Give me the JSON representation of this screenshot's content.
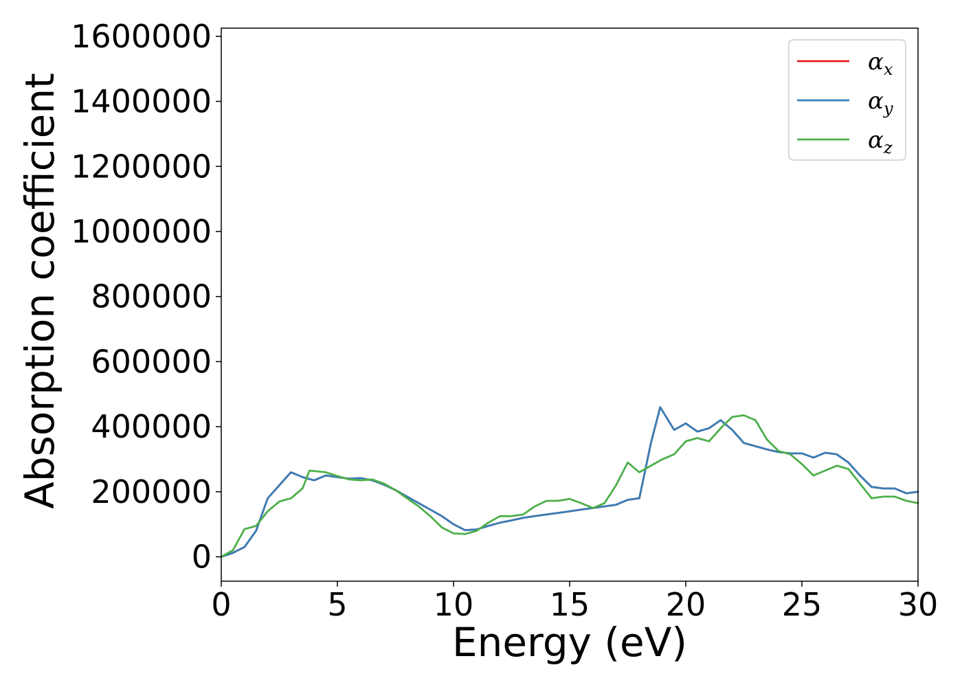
{
  "chart_data": {
    "type": "line",
    "title": "",
    "xlabel": "Energy (eV)",
    "ylabel": "Absorption coefficient",
    "xlim": [
      0,
      30
    ],
    "ylim": [
      -75000,
      1625000
    ],
    "x_ticks": [
      {
        "value": 0,
        "label": "0"
      },
      {
        "value": 5,
        "label": "5"
      },
      {
        "value": 10,
        "label": "10"
      },
      {
        "value": 15,
        "label": "15"
      },
      {
        "value": 20,
        "label": "20"
      },
      {
        "value": 25,
        "label": "25"
      },
      {
        "value": 30,
        "label": "30"
      }
    ],
    "y_ticks": [
      {
        "value": 0,
        "label": "0"
      },
      {
        "value": 200000,
        "label": "200000"
      },
      {
        "value": 400000,
        "label": "400000"
      },
      {
        "value": 600000,
        "label": "600000"
      },
      {
        "value": 800000,
        "label": "800000"
      },
      {
        "value": 1000000,
        "label": "1000000"
      },
      {
        "value": 1200000,
        "label": "1200000"
      },
      {
        "value": 1400000,
        "label": "1400000"
      },
      {
        "value": 1600000,
        "label": "1600000"
      }
    ],
    "grid": false,
    "legend_position": "top-right",
    "series": [
      {
        "name": "α",
        "subscript": "x",
        "color": "#e41a1c",
        "points": [
          [
            0,
            0
          ],
          [
            0.5,
            12000
          ],
          [
            1,
            30000
          ],
          [
            1.5,
            80000
          ],
          [
            2,
            180000
          ],
          [
            2.5,
            220000
          ],
          [
            3,
            260000
          ],
          [
            3.5,
            245000
          ],
          [
            4,
            235000
          ],
          [
            4.5,
            250000
          ],
          [
            5,
            245000
          ],
          [
            5.5,
            240000
          ],
          [
            6,
            242000
          ],
          [
            6.5,
            235000
          ],
          [
            7,
            222000
          ],
          [
            7.5,
            205000
          ],
          [
            8,
            185000
          ],
          [
            8.5,
            165000
          ],
          [
            9,
            145000
          ],
          [
            9.5,
            125000
          ],
          [
            10,
            100000
          ],
          [
            10.5,
            82000
          ],
          [
            11,
            84000
          ],
          [
            11.5,
            95000
          ],
          [
            12,
            105000
          ],
          [
            12.5,
            112000
          ],
          [
            13,
            120000
          ],
          [
            13.5,
            125000
          ],
          [
            14,
            130000
          ],
          [
            14.5,
            135000
          ],
          [
            15,
            140000
          ],
          [
            15.5,
            145000
          ],
          [
            16,
            150000
          ],
          [
            16.5,
            155000
          ],
          [
            17,
            160000
          ],
          [
            17.5,
            175000
          ],
          [
            18,
            180000
          ],
          [
            18.5,
            350000
          ],
          [
            18.9,
            460000
          ],
          [
            19.5,
            390000
          ],
          [
            20,
            410000
          ],
          [
            20.5,
            385000
          ],
          [
            21,
            395000
          ],
          [
            21.5,
            420000
          ],
          [
            22,
            390000
          ],
          [
            22.5,
            350000
          ],
          [
            23,
            340000
          ],
          [
            23.5,
            330000
          ],
          [
            24,
            322000
          ],
          [
            24.5,
            318000
          ],
          [
            25,
            318000
          ],
          [
            25.5,
            305000
          ],
          [
            26,
            320000
          ],
          [
            26.5,
            315000
          ],
          [
            27,
            290000
          ],
          [
            27.5,
            250000
          ],
          [
            28,
            215000
          ],
          [
            28.5,
            210000
          ],
          [
            29,
            210000
          ],
          [
            29.5,
            195000
          ],
          [
            30,
            200000
          ]
        ]
      },
      {
        "name": "α",
        "subscript": "y",
        "color": "#377eb8",
        "points": [
          [
            0,
            0
          ],
          [
            0.5,
            12000
          ],
          [
            1,
            30000
          ],
          [
            1.5,
            80000
          ],
          [
            2,
            180000
          ],
          [
            2.5,
            220000
          ],
          [
            3,
            260000
          ],
          [
            3.5,
            245000
          ],
          [
            4,
            235000
          ],
          [
            4.5,
            250000
          ],
          [
            5,
            245000
          ],
          [
            5.5,
            240000
          ],
          [
            6,
            242000
          ],
          [
            6.5,
            235000
          ],
          [
            7,
            222000
          ],
          [
            7.5,
            205000
          ],
          [
            8,
            185000
          ],
          [
            8.5,
            165000
          ],
          [
            9,
            145000
          ],
          [
            9.5,
            125000
          ],
          [
            10,
            100000
          ],
          [
            10.5,
            82000
          ],
          [
            11,
            84000
          ],
          [
            11.5,
            95000
          ],
          [
            12,
            105000
          ],
          [
            12.5,
            112000
          ],
          [
            13,
            120000
          ],
          [
            13.5,
            125000
          ],
          [
            14,
            130000
          ],
          [
            14.5,
            135000
          ],
          [
            15,
            140000
          ],
          [
            15.5,
            145000
          ],
          [
            16,
            150000
          ],
          [
            16.5,
            155000
          ],
          [
            17,
            160000
          ],
          [
            17.5,
            175000
          ],
          [
            18,
            180000
          ],
          [
            18.5,
            350000
          ],
          [
            18.9,
            460000
          ],
          [
            19.5,
            390000
          ],
          [
            20,
            410000
          ],
          [
            20.5,
            385000
          ],
          [
            21,
            395000
          ],
          [
            21.5,
            420000
          ],
          [
            22,
            390000
          ],
          [
            22.5,
            350000
          ],
          [
            23,
            340000
          ],
          [
            23.5,
            330000
          ],
          [
            24,
            322000
          ],
          [
            24.5,
            318000
          ],
          [
            25,
            318000
          ],
          [
            25.5,
            305000
          ],
          [
            26,
            320000
          ],
          [
            26.5,
            315000
          ],
          [
            27,
            290000
          ],
          [
            27.5,
            250000
          ],
          [
            28,
            215000
          ],
          [
            28.5,
            210000
          ],
          [
            29,
            210000
          ],
          [
            29.5,
            195000
          ],
          [
            30,
            200000
          ]
        ]
      },
      {
        "name": "α",
        "subscript": "z",
        "color": "#4daf4a",
        "points": [
          [
            0,
            0
          ],
          [
            0.5,
            20000
          ],
          [
            1,
            85000
          ],
          [
            1.5,
            95000
          ],
          [
            2,
            140000
          ],
          [
            2.5,
            170000
          ],
          [
            3,
            180000
          ],
          [
            3.5,
            210000
          ],
          [
            3.8,
            265000
          ],
          [
            4.5,
            260000
          ],
          [
            5,
            248000
          ],
          [
            5.5,
            238000
          ],
          [
            6,
            235000
          ],
          [
            6.5,
            238000
          ],
          [
            7,
            225000
          ],
          [
            7.5,
            205000
          ],
          [
            8,
            180000
          ],
          [
            8.5,
            155000
          ],
          [
            9,
            125000
          ],
          [
            9.5,
            90000
          ],
          [
            10,
            72000
          ],
          [
            10.5,
            70000
          ],
          [
            11,
            80000
          ],
          [
            11.5,
            105000
          ],
          [
            12,
            125000
          ],
          [
            12.5,
            125000
          ],
          [
            13,
            130000
          ],
          [
            13.5,
            155000
          ],
          [
            14,
            172000
          ],
          [
            14.5,
            172000
          ],
          [
            15,
            178000
          ],
          [
            15.5,
            165000
          ],
          [
            16,
            150000
          ],
          [
            16.5,
            165000
          ],
          [
            17,
            220000
          ],
          [
            17.5,
            290000
          ],
          [
            18,
            260000
          ],
          [
            18.5,
            280000
          ],
          [
            19,
            300000
          ],
          [
            19.5,
            315000
          ],
          [
            20,
            355000
          ],
          [
            20.5,
            365000
          ],
          [
            21,
            355000
          ],
          [
            21.5,
            395000
          ],
          [
            22,
            430000
          ],
          [
            22.5,
            435000
          ],
          [
            23,
            420000
          ],
          [
            23.5,
            360000
          ],
          [
            24,
            325000
          ],
          [
            24.5,
            315000
          ],
          [
            25,
            285000
          ],
          [
            25.5,
            250000
          ],
          [
            26,
            265000
          ],
          [
            26.5,
            280000
          ],
          [
            27,
            270000
          ],
          [
            27.5,
            225000
          ],
          [
            28,
            180000
          ],
          [
            28.5,
            185000
          ],
          [
            29,
            185000
          ],
          [
            29.5,
            172000
          ],
          [
            30,
            165000
          ]
        ]
      }
    ]
  }
}
